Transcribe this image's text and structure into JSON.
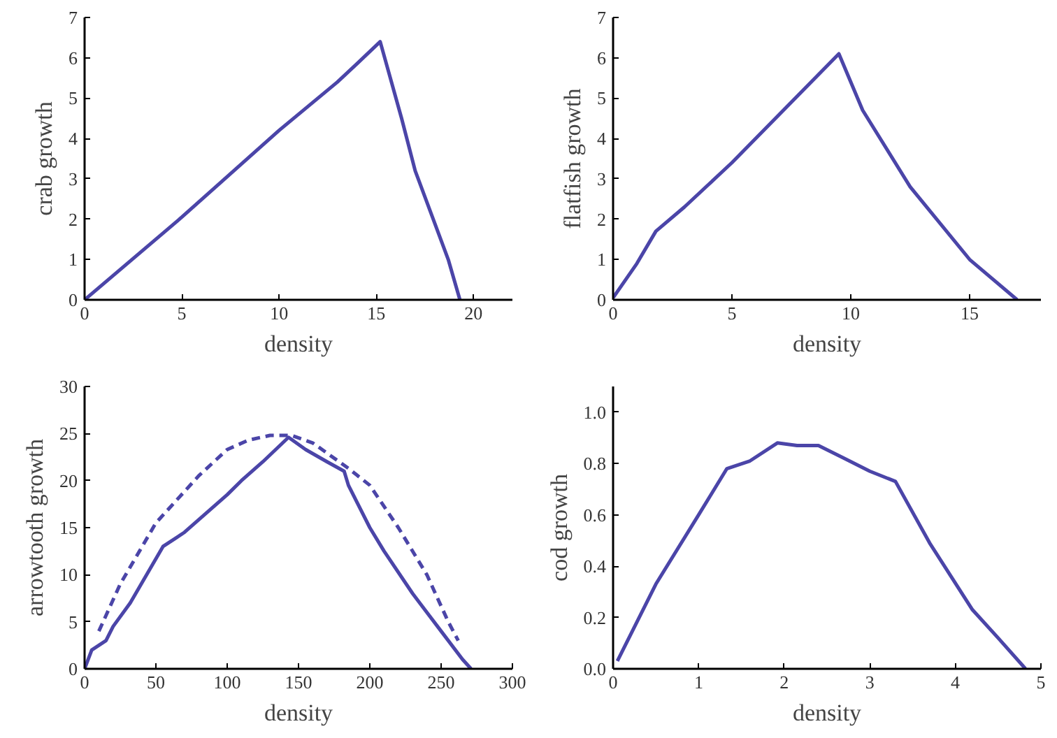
{
  "chart_data": [
    {
      "type": "line",
      "xlabel": "density",
      "ylabel": "crab growth",
      "xlim": [
        0,
        22
      ],
      "ylim": [
        0,
        7
      ],
      "xticks": [
        0,
        5,
        10,
        15,
        20
      ],
      "yticks": [
        0,
        1,
        2,
        3,
        4,
        5,
        6,
        7
      ],
      "grid": false,
      "line_style": "solid",
      "series": [
        {
          "color": "#4b45a8",
          "x": [
            0,
            5,
            10,
            13,
            14,
            15.2,
            16.3,
            17,
            18.7,
            19.3
          ],
          "values": [
            0,
            2.05,
            4.2,
            5.4,
            5.85,
            6.4,
            4.5,
            3.2,
            1,
            0
          ]
        }
      ]
    },
    {
      "type": "line",
      "xlabel": "density",
      "ylabel": "flatfish growth",
      "xlim": [
        0,
        18
      ],
      "ylim": [
        0,
        7
      ],
      "xticks": [
        0,
        5,
        10,
        15
      ],
      "yticks": [
        0,
        1,
        2,
        3,
        4,
        5,
        6,
        7
      ],
      "grid": false,
      "line_style": "solid",
      "series": [
        {
          "color": "#4b45a8",
          "x": [
            0,
            1,
            1.8,
            3,
            5,
            7,
            9.5,
            10.5,
            12.5,
            15,
            17
          ],
          "values": [
            0.05,
            0.9,
            1.7,
            2.3,
            3.4,
            4.6,
            6.1,
            4.7,
            2.8,
            1,
            0
          ]
        }
      ]
    },
    {
      "type": "line",
      "xlabel": "density",
      "ylabel": "arrowtooth growth",
      "xlim": [
        0,
        300
      ],
      "ylim": [
        0,
        30
      ],
      "xticks": [
        0,
        50,
        100,
        150,
        200,
        250,
        300
      ],
      "yticks": [
        0,
        5,
        10,
        15,
        20,
        25,
        30
      ],
      "grid": false,
      "line_style": "solid",
      "series": [
        {
          "color": "#4b45a8",
          "x": [
            0,
            5,
            15,
            20,
            32,
            55,
            70,
            100,
            110,
            125,
            143,
            155,
            170,
            182,
            185,
            190,
            200,
            210,
            230,
            240,
            250,
            265,
            271
          ],
          "values": [
            0,
            2,
            3,
            4.5,
            7,
            13,
            14.5,
            18.5,
            20,
            22,
            24.6,
            23.3,
            22,
            21,
            19.5,
            18,
            15,
            12.5,
            8,
            6,
            4,
            1,
            0
          ]
        },
        {
          "color": "#4b45a8",
          "line_style": "dashed",
          "x": [
            10,
            25,
            50,
            80,
            100,
            115,
            130,
            145,
            160,
            185,
            200,
            220,
            240,
            255,
            262
          ],
          "values": [
            4,
            9,
            15.5,
            20.5,
            23.3,
            24.3,
            24.8,
            24.8,
            24,
            21.3,
            19.5,
            15,
            10,
            5,
            3
          ]
        }
      ]
    },
    {
      "type": "line",
      "xlabel": "density",
      "ylabel": "cod growth",
      "xlim": [
        0,
        5
      ],
      "ylim": [
        0,
        1.1
      ],
      "xticks": [
        0,
        1,
        2,
        3,
        4,
        5
      ],
      "yticks": [
        {
          "value": 0,
          "label": "0.0"
        },
        {
          "value": 0.2,
          "label": "0.2"
        },
        {
          "value": 0.4,
          "label": "0.4"
        },
        {
          "value": 0.6,
          "label": "0.6"
        },
        {
          "value": 0.8,
          "label": "0.8"
        },
        {
          "value": 1,
          "label": "1.0"
        }
      ],
      "grid": false,
      "line_style": "solid",
      "series": [
        {
          "color": "#4b45a8",
          "x": [
            0.05,
            0.5,
            1,
            1.33,
            1.6,
            1.92,
            2.15,
            2.4,
            2.7,
            3,
            3.3,
            3.7,
            4.2,
            4.5,
            4.82
          ],
          "values": [
            0.03,
            0.33,
            0.6,
            0.78,
            0.81,
            0.88,
            0.87,
            0.87,
            0.82,
            0.77,
            0.73,
            0.49,
            0.23,
            0.12,
            0
          ]
        }
      ]
    }
  ]
}
